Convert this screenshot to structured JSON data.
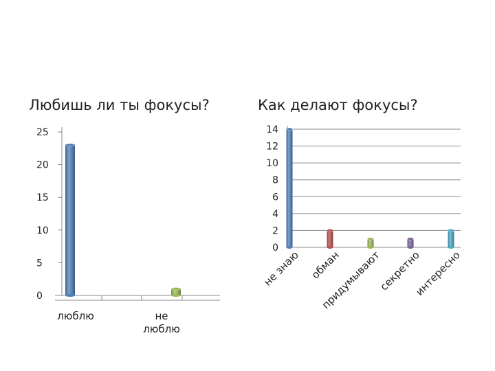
{
  "chart_data": [
    {
      "type": "bar",
      "title": "Любишь ли ты фокусы?",
      "categories": [
        "люблю",
        "не люблю"
      ],
      "values": [
        23,
        1
      ],
      "ylim": [
        0,
        25
      ],
      "yticks": [
        "0",
        "5",
        "10",
        "15",
        "20",
        "25"
      ],
      "colors": [
        "#4f81bd",
        "#9bbb59"
      ],
      "grid": false
    },
    {
      "type": "bar",
      "title": "Как делают фокусы?",
      "categories": [
        "не знаю",
        "обман",
        "придумывают",
        "секретно",
        "интересно"
      ],
      "values": [
        14,
        2,
        1,
        1,
        2
      ],
      "ylim": [
        0,
        14
      ],
      "yticks": [
        "0",
        "2",
        "4",
        "6",
        "8",
        "10",
        "12",
        "14"
      ],
      "colors": [
        "#4f81bd",
        "#c0504d",
        "#9bbb59",
        "#8064a2",
        "#4bacc6"
      ],
      "grid": true
    }
  ]
}
